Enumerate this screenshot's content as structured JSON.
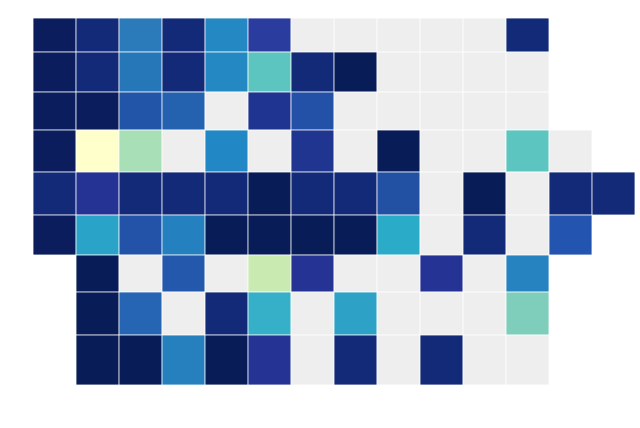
{
  "map": {
    "counties": [
      [
        "#0b1d5c",
        "#132a78",
        "#2b7bba",
        "#132a78",
        "#2488c2",
        "#2a3d9f",
        "#eeeeee",
        "#eeeeee",
        "#eeeeee",
        "#eeeeee",
        "#eeeeee",
        "#132a78",
        null,
        null
      ],
      [
        "#0b1d5c",
        "#132a78",
        "#2577b8",
        "#132a78",
        "#2488c2",
        "#5dc5bf",
        "#132a78",
        "#081d58",
        "#eeeeee",
        "#eeeeee",
        "#eeeeee",
        "#eeeeee",
        null,
        null
      ],
      [
        "#0b1d5c",
        "#0b1d5c",
        "#2255a8",
        "#2462b0",
        "#eeeeee",
        "#1f3491",
        "#2351a8",
        "#eeeeee",
        "#eeeeee",
        "#eeeeee",
        "#eeeeee",
        "#eeeeee",
        null,
        null
      ],
      [
        "#0b1d5c",
        "#ffffcc",
        "#a8dfb7",
        "#eeeeee",
        "#2288c5",
        "#eeeeee",
        "#20358f",
        "#eeeeee",
        "#081d58",
        "#eeeeee",
        "#eeeeee",
        "#5dc5bf",
        "#eeeeee",
        null
      ],
      [
        "#132a78",
        "#253494",
        "#132a78",
        "#132a78",
        "#132a78",
        "#081d58",
        "#132a78",
        "#132a78",
        "#2251a3",
        "#eeeeee",
        "#081d58",
        "#eeeeee",
        "#132a78",
        "#132a78"
      ],
      [
        "#0b1d5c",
        "#2aa3c8",
        "#2353a8",
        "#2580bf",
        "#081d58",
        "#081d58",
        "#081d58",
        "#081d58",
        "#2aabc8",
        "#eeeeee",
        "#132a78",
        "#eeeeee",
        "#2355b0",
        null
      ],
      [
        null,
        "#081d58",
        "#eeeeee",
        "#2458ad",
        "#eeeeee",
        "#c9eab1",
        "#253494",
        "#eeeeee",
        "#eeeeee",
        "#253494",
        "#eeeeee",
        "#2683c0",
        null,
        null
      ],
      [
        null,
        "#081d58",
        "#2565b3",
        "#eeeeee",
        "#132a78",
        "#35b0c8",
        "#eeeeee",
        "#2da2c6",
        "#eeeeee",
        "#eeeeee",
        "#eeeeee",
        "#7fcdbb",
        null,
        null
      ],
      [
        null,
        "#081d58",
        "#081d58",
        "#2680bd",
        "#081d58",
        "#253494",
        "#eeeeee",
        "#132a78",
        "#eeeeee",
        "#132a78",
        "#eeeeee",
        "#eeeeee",
        null,
        null
      ]
    ]
  }
}
